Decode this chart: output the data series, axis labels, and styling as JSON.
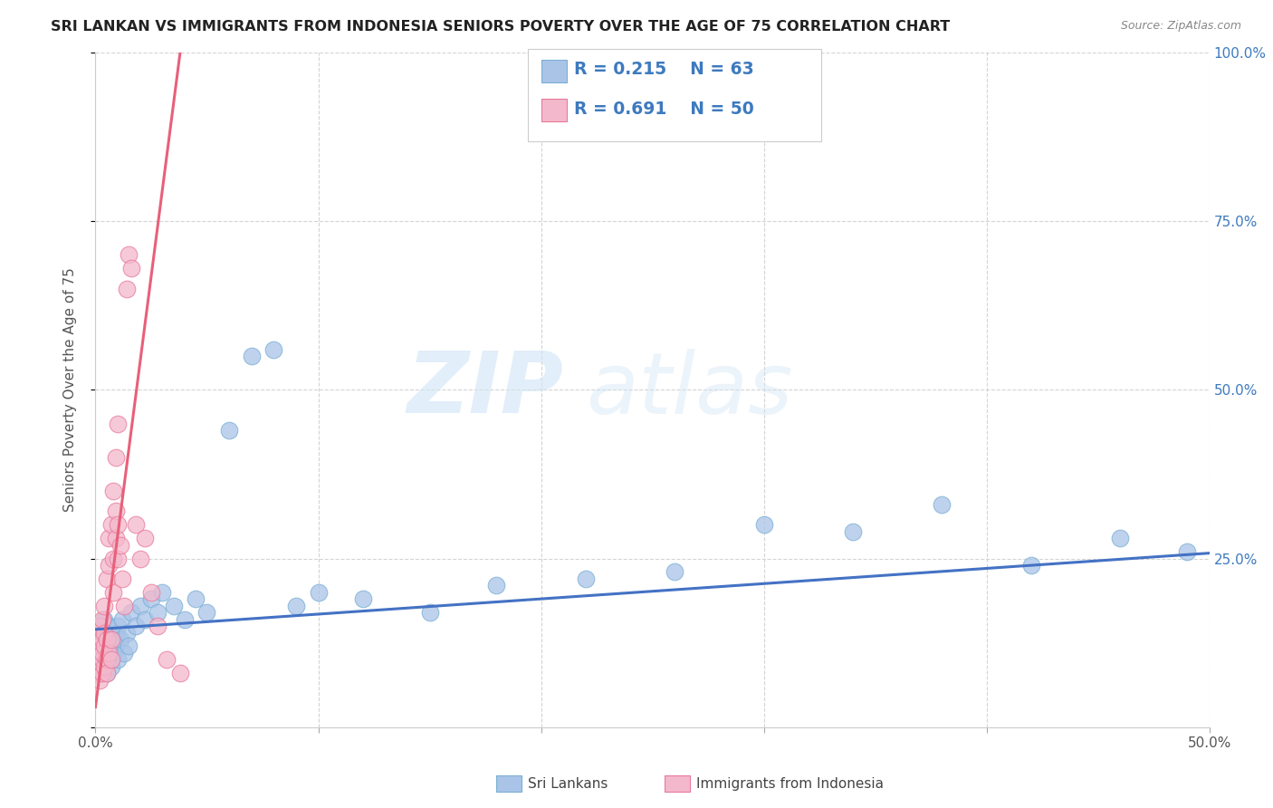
{
  "title": "SRI LANKAN VS IMMIGRANTS FROM INDONESIA SENIORS POVERTY OVER THE AGE OF 75 CORRELATION CHART",
  "source": "Source: ZipAtlas.com",
  "ylabel": "Seniors Poverty Over the Age of 75",
  "xlim": [
    0.0,
    0.5
  ],
  "ylim": [
    0.0,
    1.0
  ],
  "xticks": [
    0.0,
    0.1,
    0.2,
    0.3,
    0.4,
    0.5
  ],
  "xticklabels": [
    "0.0%",
    "",
    "",
    "",
    "",
    "50.0%"
  ],
  "yticks": [
    0.0,
    0.25,
    0.5,
    0.75,
    1.0
  ],
  "yticklabels_right": [
    "",
    "25.0%",
    "50.0%",
    "75.0%",
    "100.0%"
  ],
  "sri_lanka_color": "#aac4e8",
  "sri_lanka_edge": "#7aafd4",
  "indonesia_color": "#f4b8cc",
  "indonesia_edge": "#e87a9a",
  "trend_blue": "#4472c4",
  "trend_pink": "#e8607a",
  "watermark_zip": "ZIP",
  "watermark_atlas": "atlas",
  "legend_r1": "R = 0.215",
  "legend_n1": "N = 63",
  "legend_r2": "R = 0.691",
  "legend_n2": "N = 50",
  "legend_color": "#3d7abf",
  "sri_lanka_label": "Sri Lankans",
  "indonesia_label": "Immigrants from Indonesia",
  "sri_lanka_x": [
    0.001,
    0.001,
    0.001,
    0.002,
    0.002,
    0.002,
    0.002,
    0.003,
    0.003,
    0.003,
    0.003,
    0.004,
    0.004,
    0.004,
    0.004,
    0.005,
    0.005,
    0.005,
    0.005,
    0.006,
    0.006,
    0.006,
    0.007,
    0.007,
    0.007,
    0.008,
    0.008,
    0.009,
    0.009,
    0.01,
    0.01,
    0.011,
    0.012,
    0.013,
    0.014,
    0.015,
    0.016,
    0.018,
    0.02,
    0.022,
    0.025,
    0.028,
    0.03,
    0.035,
    0.04,
    0.045,
    0.05,
    0.06,
    0.07,
    0.08,
    0.09,
    0.1,
    0.12,
    0.15,
    0.18,
    0.22,
    0.26,
    0.3,
    0.34,
    0.38,
    0.42,
    0.46,
    0.49
  ],
  "sri_lanka_y": [
    0.14,
    0.12,
    0.1,
    0.13,
    0.11,
    0.09,
    0.15,
    0.12,
    0.1,
    0.08,
    0.14,
    0.11,
    0.09,
    0.13,
    0.16,
    0.1,
    0.12,
    0.08,
    0.14,
    0.11,
    0.13,
    0.15,
    0.1,
    0.12,
    0.09,
    0.13,
    0.11,
    0.14,
    0.12,
    0.1,
    0.15,
    0.13,
    0.16,
    0.11,
    0.14,
    0.12,
    0.17,
    0.15,
    0.18,
    0.16,
    0.19,
    0.17,
    0.2,
    0.18,
    0.16,
    0.19,
    0.17,
    0.44,
    0.55,
    0.56,
    0.18,
    0.2,
    0.19,
    0.17,
    0.21,
    0.22,
    0.23,
    0.3,
    0.29,
    0.33,
    0.24,
    0.28,
    0.26
  ],
  "indonesia_x": [
    0.001,
    0.001,
    0.001,
    0.001,
    0.002,
    0.002,
    0.002,
    0.002,
    0.002,
    0.003,
    0.003,
    0.003,
    0.003,
    0.003,
    0.004,
    0.004,
    0.004,
    0.004,
    0.005,
    0.005,
    0.005,
    0.005,
    0.006,
    0.006,
    0.006,
    0.007,
    0.007,
    0.007,
    0.008,
    0.008,
    0.008,
    0.009,
    0.009,
    0.009,
    0.01,
    0.01,
    0.01,
    0.011,
    0.012,
    0.013,
    0.014,
    0.015,
    0.016,
    0.018,
    0.02,
    0.022,
    0.025,
    0.028,
    0.032,
    0.038
  ],
  "indonesia_y": [
    0.13,
    0.1,
    0.08,
    0.14,
    0.11,
    0.09,
    0.15,
    0.12,
    0.07,
    0.1,
    0.13,
    0.08,
    0.11,
    0.16,
    0.09,
    0.12,
    0.14,
    0.18,
    0.1,
    0.13,
    0.08,
    0.22,
    0.11,
    0.24,
    0.28,
    0.1,
    0.13,
    0.3,
    0.2,
    0.25,
    0.35,
    0.28,
    0.32,
    0.4,
    0.25,
    0.3,
    0.45,
    0.27,
    0.22,
    0.18,
    0.65,
    0.7,
    0.68,
    0.3,
    0.25,
    0.28,
    0.2,
    0.15,
    0.1,
    0.08
  ],
  "sl_trend_x0": 0.0,
  "sl_trend_x1": 0.5,
  "sl_trend_y0": 0.145,
  "sl_trend_y1": 0.258,
  "id_trend_x0": 0.0,
  "id_trend_x1": 0.038,
  "id_trend_y0": 0.03,
  "id_trend_y1": 1.0
}
